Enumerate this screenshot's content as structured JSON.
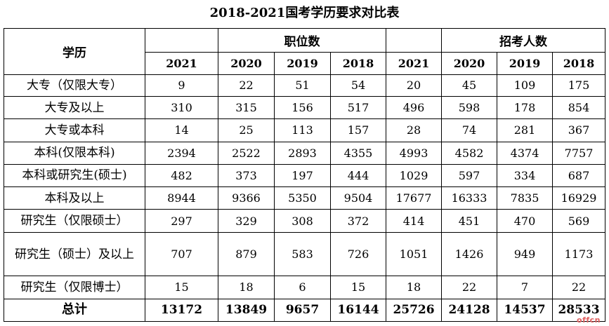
{
  "title": "2018-2021国考学历要求对比表",
  "headers": {
    "education": "学历",
    "positions_group": "职位数",
    "applicants_group": "招考人数",
    "years": [
      "2021",
      "2020",
      "2019",
      "2018",
      "2021",
      "2020",
      "2019",
      "2018"
    ]
  },
  "rows": [
    {
      "label": "大专（仅限大专）",
      "values": [
        "9",
        "22",
        "51",
        "54",
        "20",
        "45",
        "109",
        "175"
      ]
    },
    {
      "label": "大专及以上",
      "values": [
        "310",
        "315",
        "156",
        "517",
        "496",
        "598",
        "178",
        "854"
      ]
    },
    {
      "label": "大专或本科",
      "values": [
        "14",
        "25",
        "113",
        "157",
        "28",
        "74",
        "281",
        "367"
      ]
    },
    {
      "label": "本科(仅限本科)",
      "values": [
        "2394",
        "2522",
        "2893",
        "4355",
        "4993",
        "4582",
        "4374",
        "7757"
      ]
    },
    {
      "label": "本科或研究生(硕士)",
      "values": [
        "482",
        "373",
        "197",
        "444",
        "1029",
        "597",
        "334",
        "687"
      ]
    },
    {
      "label": "本科及以上",
      "values": [
        "8944",
        "9366",
        "5350",
        "9504",
        "17677",
        "16333",
        "7835",
        "16929"
      ]
    },
    {
      "label": "研究生（仅限硕士）",
      "values": [
        "297",
        "329",
        "308",
        "372",
        "414",
        "451",
        "470",
        "569"
      ]
    },
    {
      "label": "研究生（硕士）及以上",
      "values": [
        "707",
        "879",
        "583",
        "726",
        "1051",
        "1426",
        "949",
        "1173"
      ]
    },
    {
      "label": "研究生（仅限博士）",
      "values": [
        "15",
        "18",
        "6",
        "15",
        "18",
        "22",
        "7",
        "22"
      ]
    }
  ],
  "total": {
    "label": "总计",
    "values": [
      "13172",
      "13849",
      "9657",
      "16144",
      "25726",
      "24128",
      "14537",
      "28533"
    ]
  },
  "watermark": "offcn"
}
